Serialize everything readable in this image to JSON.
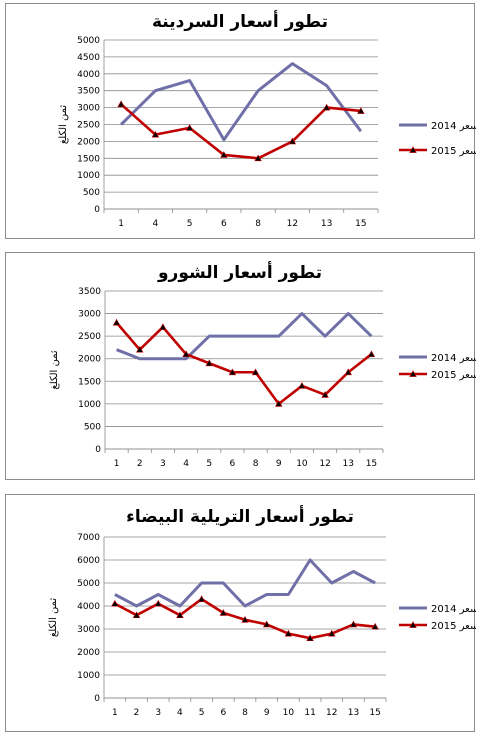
{
  "chart_data": [
    {
      "type": "line",
      "title": "تطور أسعار السردينة",
      "ylabel": "ثمن الكلغ",
      "categories": [
        "1",
        "4",
        "5",
        "6",
        "8",
        "12",
        "13",
        "15"
      ],
      "ylim": [
        0,
        5000
      ],
      "yticks": [
        0,
        500,
        1000,
        1500,
        2000,
        2500,
        3000,
        3500,
        4000,
        4500,
        5000
      ],
      "grid": true,
      "legend": "right",
      "series": [
        {
          "name": "السعر 2014",
          "color": "#7070a8",
          "marker": "none",
          "values": [
            2500,
            3500,
            3800,
            2050,
            3500,
            4300,
            3650,
            2300
          ]
        },
        {
          "name": "السعر 2015",
          "color": "#c00000",
          "marker": "triangle",
          "values": [
            3100,
            2200,
            2400,
            1600,
            1500,
            2000,
            3000,
            2900
          ]
        }
      ]
    },
    {
      "type": "line",
      "title": "تطور أسعار الشورو",
      "ylabel": "ثمن الكلغ",
      "categories": [
        "1",
        "2",
        "3",
        "4",
        "5",
        "6",
        "8",
        "9",
        "10",
        "12",
        "13",
        "15"
      ],
      "ylim": [
        0,
        3500
      ],
      "yticks": [
        0,
        500,
        1000,
        1500,
        2000,
        2500,
        3000,
        3500
      ],
      "grid": true,
      "legend": "right",
      "series": [
        {
          "name": "السعر 2014",
          "color": "#7070a8",
          "marker": "none",
          "values": [
            2200,
            2000,
            2000,
            2000,
            2500,
            2500,
            2500,
            2500,
            3000,
            2500,
            3000,
            2500
          ]
        },
        {
          "name": "السعر 2015",
          "color": "#c00000",
          "marker": "triangle",
          "values": [
            2800,
            2200,
            2700,
            2100,
            1900,
            1700,
            1700,
            1000,
            1400,
            1200,
            1700,
            2100
          ]
        }
      ]
    },
    {
      "type": "line",
      "title": "تطور أسعار التريلية البيضاء",
      "ylabel": "ثمن الكلغ",
      "categories": [
        "1",
        "2",
        "3",
        "4",
        "5",
        "6",
        "8",
        "9",
        "10",
        "11",
        "12",
        "13",
        "15"
      ],
      "ylim": [
        0,
        7000
      ],
      "yticks": [
        0,
        1000,
        2000,
        3000,
        4000,
        5000,
        6000,
        7000
      ],
      "grid": true,
      "legend": "right",
      "series": [
        {
          "name": "السعر 2014",
          "color": "#7070a8",
          "marker": "none",
          "values": [
            4500,
            4000,
            4500,
            4000,
            5000,
            5000,
            4000,
            4500,
            4500,
            6000,
            5000,
            5500,
            5000
          ]
        },
        {
          "name": "السعر 2015",
          "color": "#c00000",
          "marker": "triangle",
          "values": [
            4100,
            3600,
            4100,
            3600,
            4300,
            3700,
            3400,
            3200,
            2800,
            2600,
            2800,
            3200,
            3100
          ]
        }
      ]
    }
  ]
}
